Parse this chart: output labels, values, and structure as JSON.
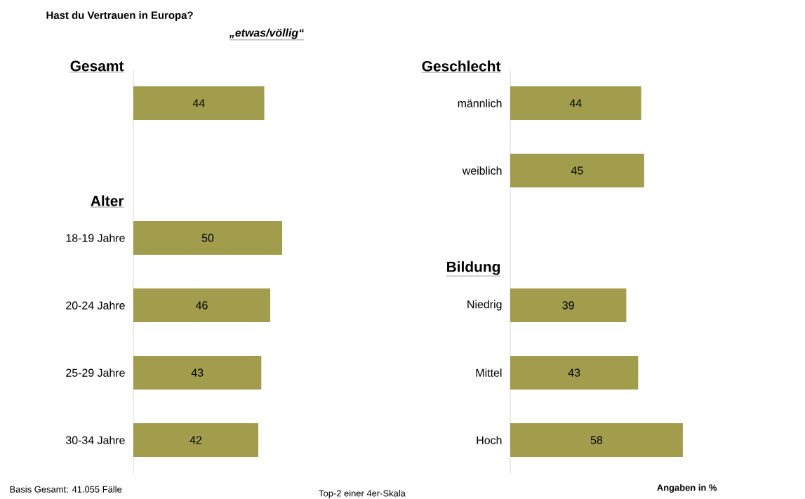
{
  "chart_data": [
    {
      "type": "bar",
      "orientation": "horizontal",
      "title": "Hast du Vertrauen in Europa?",
      "subtitle": "„etwas/völlig“",
      "categories": [
        null,
        null,
        "18-19 Jahre",
        "20-24 Jahre",
        "25-29 Jahre",
        "30-34 Jahre"
      ],
      "values": [
        44,
        null,
        50,
        46,
        43,
        42
      ],
      "color": "#a19d4c",
      "data_labels": true,
      "tick_labels": "y",
      "annotations": [
        "Gesamt",
        "Alter",
        "Basis Gesamt: 41.055 Fälle",
        "Top-2 einer 4er-Skala",
        "Angaben in %"
      ]
    },
    {
      "type": "bar",
      "orientation": "horizontal",
      "categories": [
        "männlich",
        "weiblich",
        null,
        "Niedrig",
        "Mittel",
        "Hoch"
      ],
      "values": [
        44,
        45,
        null,
        39,
        43,
        58
      ],
      "color": "#a19d4c",
      "data_labels": true,
      "tick_labels": "y",
      "annotations": [
        "Geschlecht",
        "Bildung"
      ]
    }
  ]
}
